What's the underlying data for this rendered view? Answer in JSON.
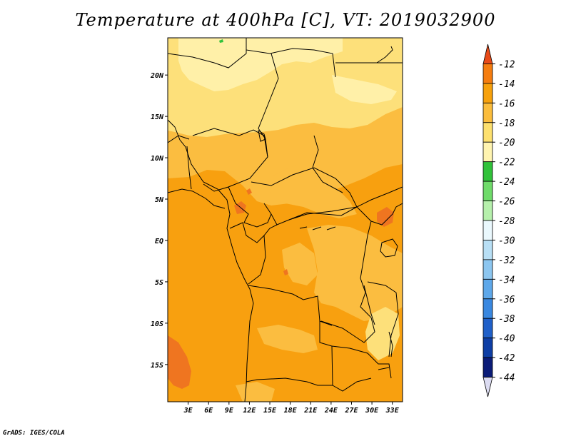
{
  "title": "Temperature at 400hPa [C], VT: 2019032900",
  "credit": "GrADS: IGES/COLA",
  "map": {
    "lat_range": [
      -19.5,
      24.5
    ],
    "lon_range": [
      0,
      34.5
    ],
    "lat_ticks": [
      {
        "value": 20,
        "label": "20N"
      },
      {
        "value": 15,
        "label": "15N"
      },
      {
        "value": 10,
        "label": "10N"
      },
      {
        "value": 5,
        "label": "5N"
      },
      {
        "value": 0,
        "label": "EQ"
      },
      {
        "value": -5,
        "label": "5S"
      },
      {
        "value": -10,
        "label": "10S"
      },
      {
        "value": -15,
        "label": "15S"
      }
    ],
    "lon_ticks": [
      {
        "value": 3,
        "label": "3E"
      },
      {
        "value": 6,
        "label": "6E"
      },
      {
        "value": 9,
        "label": "9E"
      },
      {
        "value": 12,
        "label": "12E"
      },
      {
        "value": 15,
        "label": "15E"
      },
      {
        "value": 18,
        "label": "18E"
      },
      {
        "value": 21,
        "label": "21E"
      },
      {
        "value": 24,
        "label": "24E"
      },
      {
        "value": 27,
        "label": "27E"
      },
      {
        "value": 30,
        "label": "30E"
      },
      {
        "value": 33,
        "label": "33E"
      }
    ]
  },
  "colorbar": {
    "labels": [
      "-12",
      "-14",
      "-16",
      "-18",
      "-20",
      "-22",
      "-24",
      "-26",
      "-28",
      "-30",
      "-32",
      "-34",
      "-36",
      "-38",
      "-40",
      "-42",
      "-44"
    ],
    "colors": [
      "#e84a18",
      "#f57d0f",
      "#f7a10c",
      "#fbbd3c",
      "#fde06e",
      "#fff4b0",
      "#31c23a",
      "#6fdb6a",
      "#b6f0ac",
      "#eaf8fd",
      "#b8dff5",
      "#8cc6f0",
      "#5ea8ea",
      "#3a88e0",
      "#2060c9",
      "#0e3ea5",
      "#0b1c78",
      "#dcdcf2"
    ]
  },
  "colors": {
    "c_m14": "#f8a00f",
    "c_m16": "#fbbd40",
    "c_m18": "#fde07a",
    "c_m20": "#fff0a8",
    "c_m12": "#ef7520",
    "c_green": "#31c23a"
  }
}
